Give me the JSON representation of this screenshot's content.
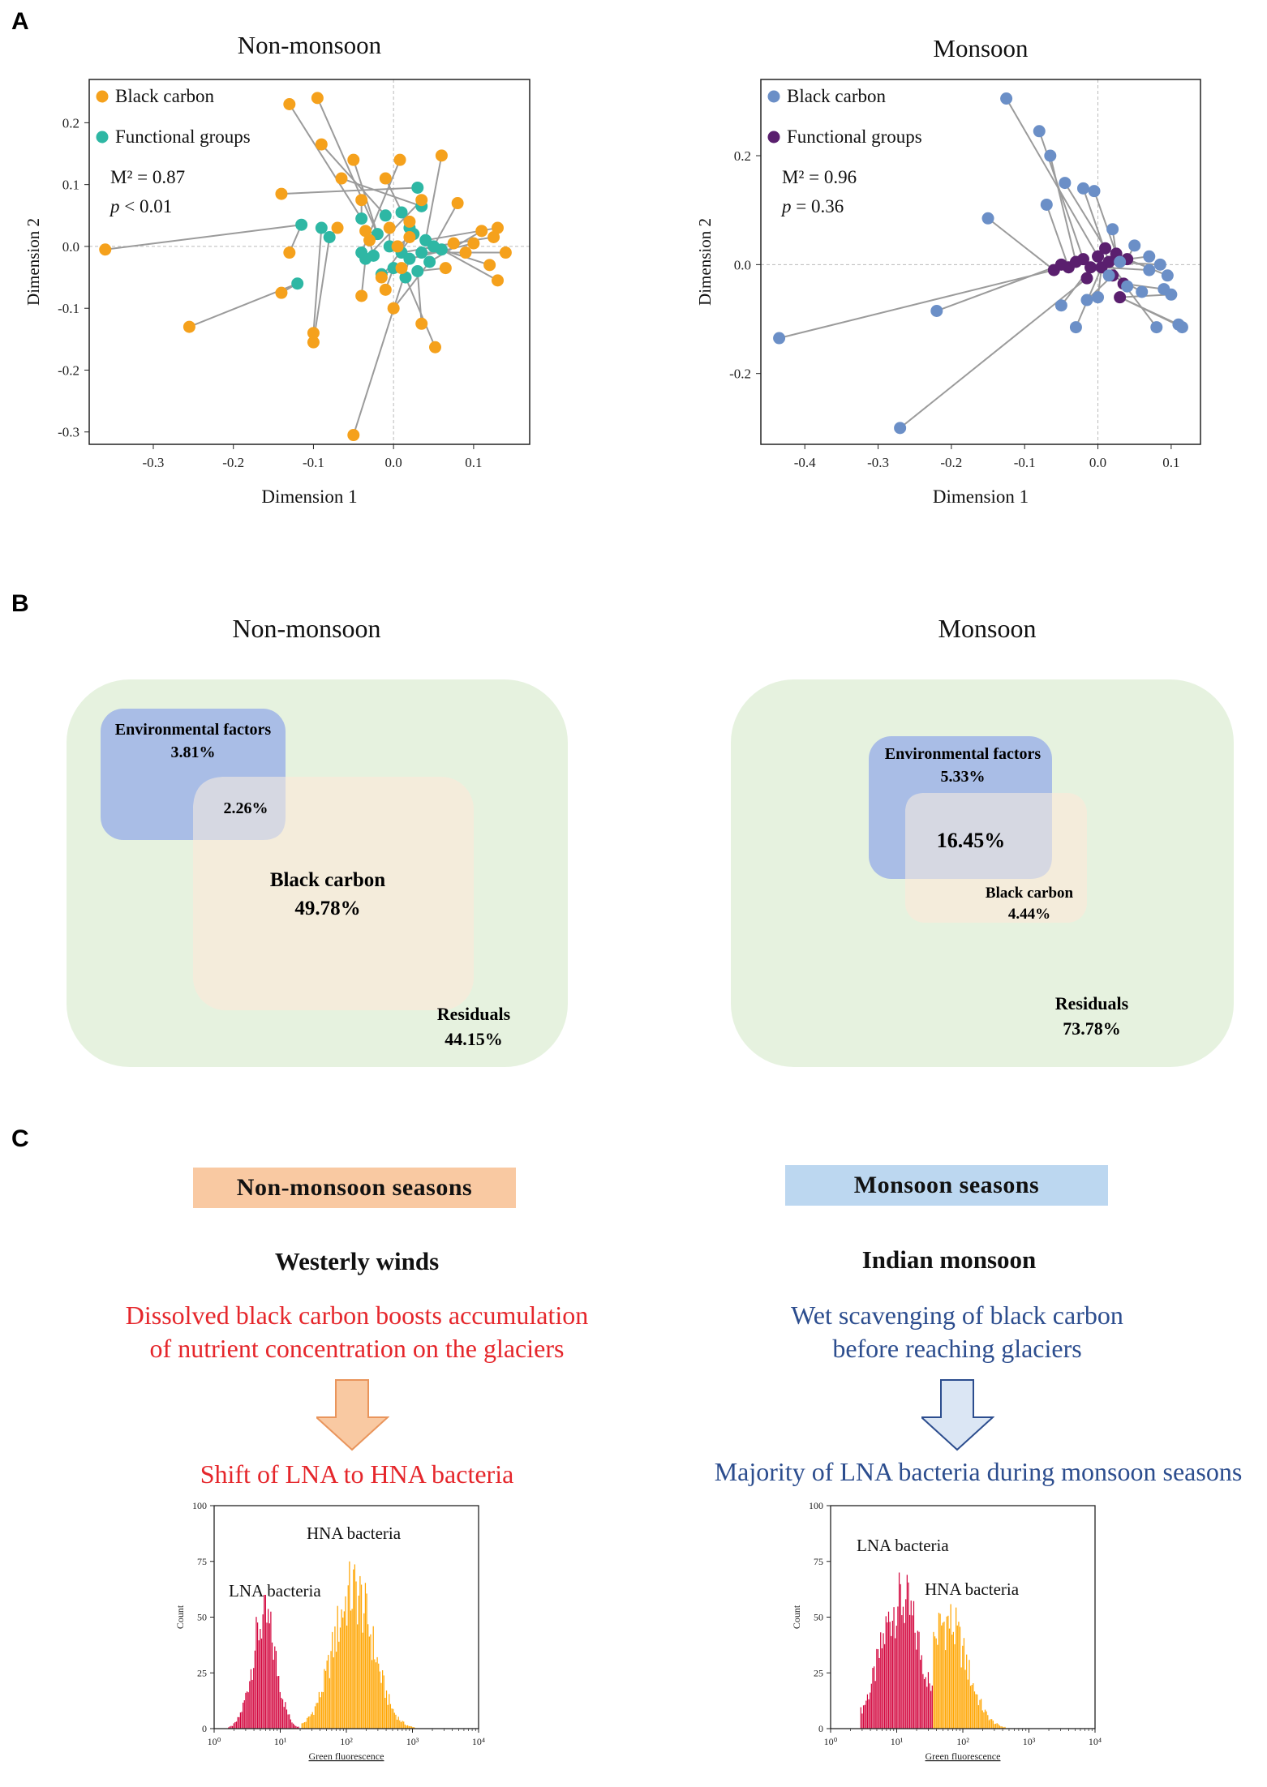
{
  "panels": {
    "a_label": "A",
    "b_label": "B",
    "c_label": "C"
  },
  "colors": {
    "orange": "#f5a11c",
    "teal": "#2eb7a4",
    "blue_pt": "#6b8fc7",
    "purple": "#5a1f6e",
    "env_box": "#a9bde6",
    "bc_box": "#f4ecdb",
    "res_box": "#e6f2df",
    "overlap": "#d6d8e2",
    "lna": "#d3063e",
    "hna": "#ffa500",
    "nm_box": "#f9c9a2",
    "m_box": "#bcd7f0",
    "red_text": "#e5262b",
    "blue_text": "#2c4d8e"
  },
  "chart_data": [
    {
      "type": "scatter",
      "id": "procrustes-nonmonsoon",
      "title": "Non-monsoon",
      "xlabel": "Dimension 1",
      "ylabel": "Dimension 2",
      "xlim": [
        -0.38,
        0.17
      ],
      "ylim": [
        -0.32,
        0.27
      ],
      "xticks": [
        -0.3,
        -0.2,
        -0.1,
        0.0,
        0.1
      ],
      "yticks": [
        0.2,
        0.1,
        0.0,
        -0.1,
        -0.2,
        -0.3
      ],
      "xtick_labels": [
        "-0.3",
        "-0.2",
        "-0.1",
        "0.0",
        "0.1"
      ],
      "ytick_labels": [
        "0.2",
        "0.1",
        "0.0",
        "-0.1",
        "-0.2",
        "-0.3"
      ],
      "legend": [
        {
          "name": "Black carbon",
          "color": "#f5a11c"
        },
        {
          "name": "Functional groups",
          "color": "#2eb7a4"
        }
      ],
      "stat_m2": "M² = 0.87",
      "stat_p_symbol": "p",
      "stat_p": " < 0.01",
      "series": [
        {
          "name": "Black carbon",
          "color": "#f5a11c",
          "points": [
            [
              -0.36,
              -0.005
            ],
            [
              -0.255,
              -0.13
            ],
            [
              -0.13,
              0.23
            ],
            [
              -0.095,
              0.24
            ],
            [
              -0.09,
              0.165
            ],
            [
              -0.05,
              0.14
            ],
            [
              -0.14,
              0.085
            ],
            [
              -0.065,
              0.11
            ],
            [
              -0.04,
              0.075
            ],
            [
              -0.01,
              0.11
            ],
            [
              0.008,
              0.14
            ],
            [
              0.06,
              0.147
            ],
            [
              0.035,
              0.075
            ],
            [
              0.08,
              0.07
            ],
            [
              -0.035,
              0.025
            ],
            [
              -0.07,
              0.03
            ],
            [
              -0.005,
              0.03
            ],
            [
              0.02,
              0.04
            ],
            [
              -0.13,
              -0.01
            ],
            [
              -0.14,
              -0.075
            ],
            [
              -0.1,
              -0.14
            ],
            [
              -0.1,
              -0.155
            ],
            [
              -0.05,
              -0.305
            ],
            [
              -0.04,
              -0.08
            ],
            [
              -0.01,
              -0.07
            ],
            [
              0.01,
              -0.035
            ],
            [
              0.035,
              -0.125
            ],
            [
              0.052,
              -0.163
            ],
            [
              0.0,
              -0.1
            ],
            [
              0.13,
              -0.055
            ],
            [
              0.14,
              -0.01
            ],
            [
              0.13,
              0.03
            ],
            [
              0.125,
              0.015
            ],
            [
              0.11,
              0.025
            ],
            [
              0.1,
              0.005
            ],
            [
              0.075,
              0.005
            ],
            [
              0.065,
              -0.035
            ],
            [
              0.02,
              0.015
            ],
            [
              -0.03,
              0.01
            ],
            [
              0.09,
              -0.01
            ],
            [
              0.12,
              -0.03
            ],
            [
              -0.015,
              -0.05
            ],
            [
              0.005,
              0.0
            ]
          ]
        },
        {
          "name": "Functional groups",
          "color": "#2eb7a4",
          "points": [
            [
              -0.115,
              0.035
            ],
            [
              -0.09,
              0.03
            ],
            [
              -0.08,
              0.015
            ],
            [
              -0.12,
              -0.06
            ],
            [
              -0.04,
              0.045
            ],
            [
              -0.02,
              0.02
            ],
            [
              -0.01,
              0.05
            ],
            [
              0.01,
              0.055
            ],
            [
              0.02,
              0.03
            ],
            [
              0.03,
              0.095
            ],
            [
              0.035,
              0.065
            ],
            [
              -0.005,
              0.0
            ],
            [
              0.01,
              -0.01
            ],
            [
              0.02,
              -0.02
            ],
            [
              0.035,
              -0.01
            ],
            [
              0.04,
              0.01
            ],
            [
              -0.035,
              -0.02
            ],
            [
              -0.04,
              -0.01
            ],
            [
              0.0,
              -0.035
            ],
            [
              0.03,
              -0.04
            ],
            [
              0.015,
              -0.05
            ],
            [
              -0.015,
              -0.045
            ],
            [
              0.05,
              0.0
            ],
            [
              0.06,
              -0.005
            ],
            [
              0.045,
              -0.025
            ],
            [
              -0.025,
              -0.015
            ],
            [
              0.025,
              0.02
            ]
          ]
        }
      ],
      "links": [
        [
          0,
          0
        ],
        [
          1,
          3
        ],
        [
          2,
          4
        ],
        [
          3,
          5
        ],
        [
          4,
          6
        ],
        [
          5,
          5
        ],
        [
          6,
          9
        ],
        [
          7,
          10
        ],
        [
          8,
          4
        ],
        [
          9,
          8
        ],
        [
          10,
          17
        ],
        [
          11,
          15
        ],
        [
          12,
          16
        ],
        [
          13,
          22
        ],
        [
          14,
          5
        ],
        [
          15,
          2
        ],
        [
          16,
          11
        ],
        [
          17,
          12
        ],
        [
          18,
          0
        ],
        [
          19,
          3
        ],
        [
          20,
          1
        ],
        [
          21,
          2
        ],
        [
          22,
          13
        ],
        [
          23,
          16
        ],
        [
          24,
          18
        ],
        [
          25,
          21
        ],
        [
          26,
          19
        ],
        [
          27,
          20
        ],
        [
          28,
          24
        ],
        [
          29,
          23
        ],
        [
          30,
          14
        ],
        [
          31,
          15
        ],
        [
          32,
          22
        ],
        [
          33,
          24
        ],
        [
          34,
          13
        ],
        [
          35,
          12
        ],
        [
          36,
          19
        ],
        [
          37,
          7
        ],
        [
          38,
          25
        ],
        [
          39,
          14
        ],
        [
          40,
          23
        ],
        [
          41,
          26
        ],
        [
          42,
          26
        ]
      ]
    },
    {
      "type": "scatter",
      "id": "procrustes-monsoon",
      "title": "Monsoon",
      "xlabel": "Dimension 1",
      "ylabel": "Dimension 2",
      "xlim": [
        -0.46,
        0.14
      ],
      "ylim": [
        -0.33,
        0.34
      ],
      "xticks": [
        -0.4,
        -0.3,
        -0.2,
        -0.1,
        0.0,
        0.1
      ],
      "yticks": [
        0.2,
        0.0,
        -0.2
      ],
      "xtick_labels": [
        "-0.4",
        "-0.3",
        "-0.2",
        "-0.1",
        "0.0",
        "0.1"
      ],
      "ytick_labels": [
        "0.2",
        "0.0",
        "-0.2"
      ],
      "legend": [
        {
          "name": "Black carbon",
          "color": "#6b8fc7"
        },
        {
          "name": "Functional groups",
          "color": "#5a1f6e"
        }
      ],
      "stat_m2": "M² = 0.96",
      "stat_p_symbol": "p",
      "stat_p": " = 0.36",
      "series": [
        {
          "name": "Black carbon",
          "color": "#6b8fc7",
          "points": [
            [
              -0.125,
              0.305
            ],
            [
              -0.08,
              0.245
            ],
            [
              -0.065,
              0.2
            ],
            [
              -0.045,
              0.15
            ],
            [
              -0.07,
              0.11
            ],
            [
              -0.15,
              0.085
            ],
            [
              -0.02,
              0.14
            ],
            [
              -0.005,
              0.135
            ],
            [
              -0.435,
              -0.135
            ],
            [
              -0.22,
              -0.085
            ],
            [
              -0.27,
              -0.3
            ],
            [
              -0.05,
              -0.075
            ],
            [
              -0.03,
              -0.115
            ],
            [
              -0.015,
              -0.065
            ],
            [
              0.0,
              -0.06
            ],
            [
              0.02,
              0.065
            ],
            [
              0.05,
              0.035
            ],
            [
              0.07,
              0.015
            ],
            [
              0.09,
              -0.045
            ],
            [
              0.1,
              -0.055
            ],
            [
              0.11,
              -0.11
            ],
            [
              0.115,
              -0.115
            ],
            [
              0.08,
              -0.115
            ],
            [
              0.06,
              -0.05
            ],
            [
              0.04,
              -0.04
            ],
            [
              0.095,
              -0.02
            ],
            [
              0.085,
              0.0
            ],
            [
              0.07,
              -0.01
            ],
            [
              0.03,
              0.005
            ],
            [
              0.015,
              -0.02
            ]
          ]
        },
        {
          "name": "Functional groups",
          "color": "#5a1f6e",
          "points": [
            [
              -0.06,
              -0.01
            ],
            [
              -0.04,
              -0.005
            ],
            [
              -0.03,
              0.005
            ],
            [
              -0.02,
              0.01
            ],
            [
              -0.01,
              -0.005
            ],
            [
              0.0,
              0.015
            ],
            [
              0.01,
              0.03
            ],
            [
              0.02,
              -0.02
            ],
            [
              0.03,
              -0.06
            ],
            [
              0.04,
              0.01
            ],
            [
              -0.015,
              -0.025
            ],
            [
              0.005,
              -0.005
            ],
            [
              0.015,
              0.005
            ],
            [
              0.025,
              0.02
            ],
            [
              -0.05,
              0.0
            ],
            [
              0.035,
              -0.035
            ]
          ]
        }
      ],
      "links": [
        [
          0,
          5
        ],
        [
          1,
          3
        ],
        [
          2,
          2
        ],
        [
          3,
          6
        ],
        [
          4,
          1
        ],
        [
          5,
          0
        ],
        [
          6,
          12
        ],
        [
          7,
          13
        ],
        [
          8,
          0
        ],
        [
          9,
          14
        ],
        [
          10,
          10
        ],
        [
          11,
          4
        ],
        [
          12,
          11
        ],
        [
          13,
          7
        ],
        [
          14,
          11
        ],
        [
          15,
          13
        ],
        [
          16,
          9
        ],
        [
          17,
          9
        ],
        [
          18,
          15
        ],
        [
          19,
          8
        ],
        [
          20,
          8
        ],
        [
          21,
          8
        ],
        [
          22,
          15
        ],
        [
          23,
          7
        ],
        [
          24,
          12
        ],
        [
          25,
          9
        ],
        [
          26,
          12
        ],
        [
          27,
          11
        ],
        [
          28,
          5
        ],
        [
          29,
          4
        ]
      ]
    },
    {
      "type": "venn",
      "id": "varpart-nonmonsoon",
      "title": "Non-monsoon",
      "environmental_label": "Environmental factors",
      "environmental_value": "3.81%",
      "overlap_value": "2.26%",
      "black_carbon_label": "Black carbon",
      "black_carbon_value": "49.78%",
      "residuals_label": "Residuals",
      "residuals_value": "44.15%"
    },
    {
      "type": "venn",
      "id": "varpart-monsoon",
      "title": "Monsoon",
      "environmental_label": "Environmental factors",
      "environmental_value": "5.33%",
      "overlap_value": "16.45%",
      "black_carbon_label": "Black carbon",
      "black_carbon_value": "4.44%",
      "residuals_label": "Residuals",
      "residuals_value": "73.78%"
    },
    {
      "type": "bar",
      "id": "fcm-nonmonsoon",
      "xlabel": "Green fluorescence",
      "ylabel": "Count",
      "ylim": [
        0,
        100
      ],
      "yticks": [
        0,
        25,
        50,
        75,
        100
      ],
      "ytick_labels": [
        "0",
        "25",
        "50",
        "75",
        "100"
      ],
      "xtick_labels": [
        "10⁰",
        "10¹",
        "10²",
        "10³",
        "10⁴"
      ],
      "series": [
        {
          "name": "LNA bacteria",
          "color": "#d3063e",
          "center": 0.75,
          "sigma": 0.18,
          "peak": 60,
          "range": [
            0.05,
            1.32
          ]
        },
        {
          "name": "HNA bacteria",
          "color": "#ffa500",
          "center": 2.1,
          "sigma": 0.3,
          "peak": 75,
          "range": [
            1.32,
            3.3
          ]
        }
      ],
      "labels": {
        "hna": "HNA bacteria",
        "lna": "LNA bacteria"
      }
    },
    {
      "type": "bar",
      "id": "fcm-monsoon",
      "xlabel": "Green fluorescence",
      "ylabel": "Count",
      "ylim": [
        0,
        100
      ],
      "yticks": [
        0,
        25,
        50,
        75,
        100
      ],
      "ytick_labels": [
        "0",
        "25",
        "50",
        "75",
        "100"
      ],
      "xtick_labels": [
        "10⁰",
        "10¹",
        "10²",
        "10³",
        "10⁴"
      ],
      "series": [
        {
          "name": "LNA bacteria",
          "color": "#d3063e",
          "center": 1.05,
          "sigma": 0.3,
          "peak": 70,
          "range": [
            0.45,
            1.55
          ]
        },
        {
          "name": "HNA bacteria",
          "color": "#ffa500",
          "center": 1.75,
          "sigma": 0.3,
          "peak": 58,
          "range": [
            1.55,
            2.9
          ]
        }
      ],
      "labels": {
        "lna": "LNA bacteria",
        "hna": "HNA bacteria"
      }
    }
  ],
  "panel_c": {
    "left": {
      "season": "Non-monsoon seasons",
      "wind": "Westerly winds",
      "line1": "Dissolved black carbon boosts accumulation",
      "line2": "of nutrient concentration on the glaciers",
      "result": "Shift of LNA to HNA bacteria"
    },
    "right": {
      "season": "Monsoon seasons",
      "wind": "Indian monsoon",
      "line1": "Wet scavenging of black carbon",
      "line2": "before reaching glaciers",
      "result": "Majority of LNA bacteria during monsoon seasons"
    }
  }
}
